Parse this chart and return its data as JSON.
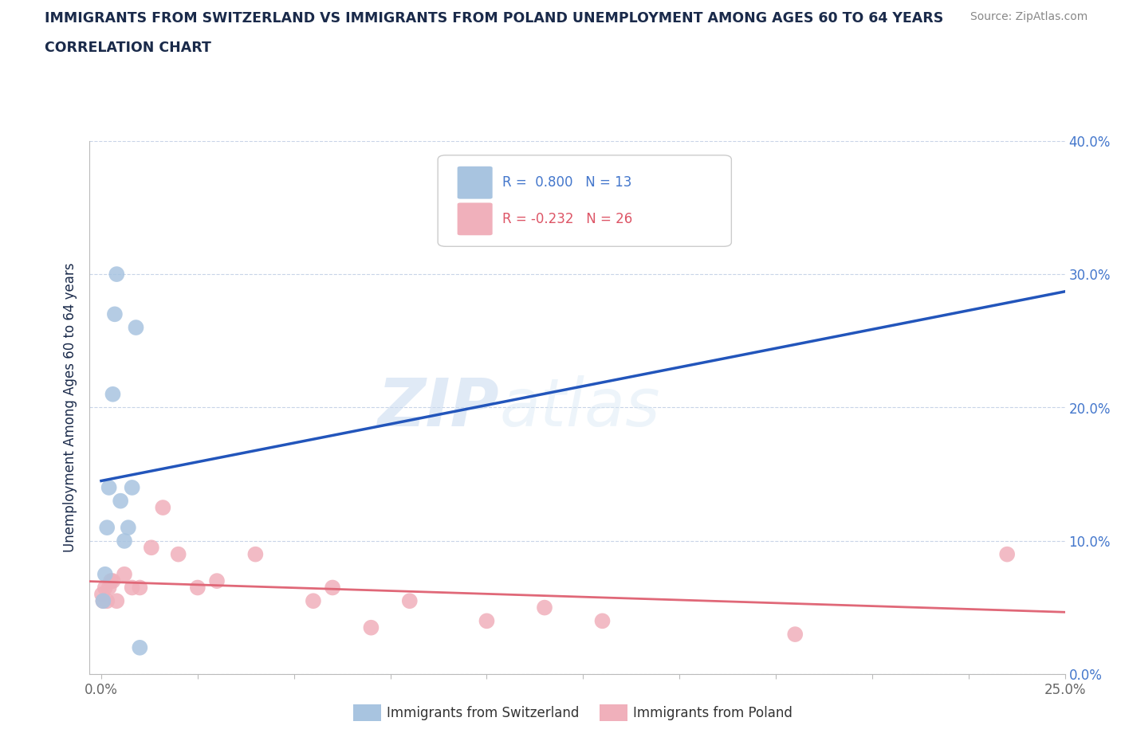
{
  "title_line1": "IMMIGRANTS FROM SWITZERLAND VS IMMIGRANTS FROM POLAND UNEMPLOYMENT AMONG AGES 60 TO 64 YEARS",
  "title_line2": "CORRELATION CHART",
  "source_text": "Source: ZipAtlas.com",
  "ylabel": "Unemployment Among Ages 60 to 64 years",
  "switzerland_x": [
    0.0005,
    0.001,
    0.0015,
    0.002,
    0.003,
    0.0035,
    0.004,
    0.005,
    0.006,
    0.007,
    0.008,
    0.009,
    0.01
  ],
  "switzerland_y": [
    0.055,
    0.075,
    0.11,
    0.14,
    0.21,
    0.27,
    0.3,
    0.13,
    0.1,
    0.11,
    0.14,
    0.26,
    0.02
  ],
  "poland_x": [
    0.0002,
    0.0005,
    0.001,
    0.0015,
    0.002,
    0.0025,
    0.003,
    0.004,
    0.006,
    0.008,
    0.01,
    0.013,
    0.016,
    0.02,
    0.025,
    0.03,
    0.04,
    0.055,
    0.06,
    0.07,
    0.08,
    0.1,
    0.115,
    0.13,
    0.18,
    0.235
  ],
  "poland_y": [
    0.06,
    0.055,
    0.065,
    0.055,
    0.065,
    0.07,
    0.07,
    0.055,
    0.075,
    0.065,
    0.065,
    0.095,
    0.125,
    0.09,
    0.065,
    0.07,
    0.09,
    0.055,
    0.065,
    0.035,
    0.055,
    0.04,
    0.05,
    0.04,
    0.03,
    0.09
  ],
  "R_switzerland": 0.8,
  "N_switzerland": 13,
  "R_poland": -0.232,
  "N_poland": 26,
  "color_switzerland": "#a8c4e0",
  "color_poland": "#f0b0bb",
  "line_color_switzerland": "#2255bb",
  "line_color_poland": "#e06878",
  "line_dash_color_switzerland": "#88aadd",
  "xlim": [
    0.0,
    0.25
  ],
  "ylim": [
    0.0,
    0.4
  ],
  "yticks": [
    0.0,
    0.1,
    0.2,
    0.3,
    0.4
  ],
  "ytick_labels": [
    "0.0%",
    "10.0%",
    "20.0%",
    "30.0%",
    "40.0%"
  ],
  "xticks": [
    0.0,
    0.025,
    0.05,
    0.075,
    0.1,
    0.125,
    0.15,
    0.175,
    0.2,
    0.225,
    0.25
  ],
  "background_color": "#ffffff",
  "grid_color": "#c8d4e8",
  "title_color": "#1a2a4a",
  "tick_color": "#666666",
  "right_tick_color": "#4477cc"
}
